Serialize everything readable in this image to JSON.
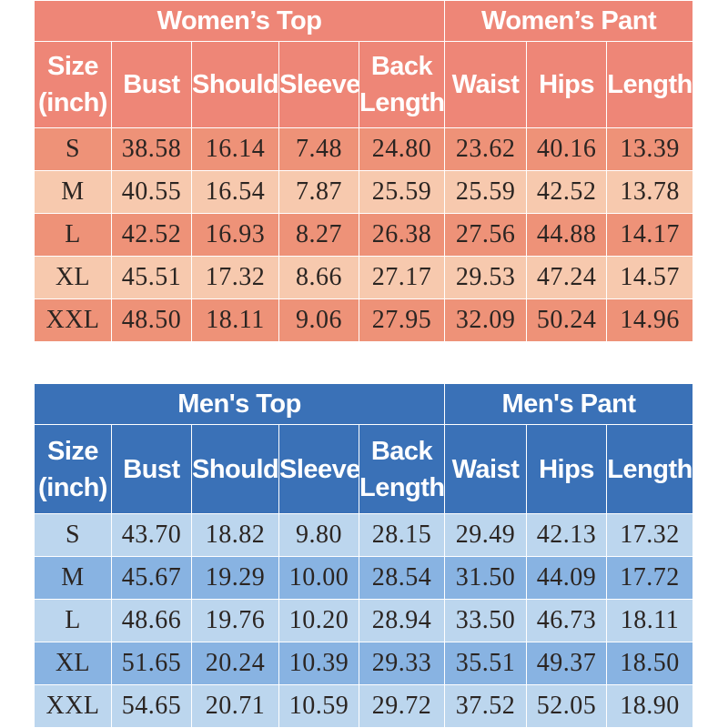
{
  "colors": {
    "women_header": "#ee8677",
    "women_row_dark": "#ee9278",
    "women_row_light": "#f7c9ae",
    "men_header": "#3a71b7",
    "men_row_light": "#bcd6ee",
    "men_row_dark": "#88b3e2",
    "cell_text": "#2b2522"
  },
  "women": {
    "top_title": "Women’s Top",
    "pant_title": "Women’s Pant",
    "headers": [
      "Size\n(inch)",
      "Bust",
      "Shoulder",
      "Sleeve",
      "Back\nLength",
      "Waist",
      "Hips",
      "Length"
    ],
    "rows": [
      [
        "S",
        "38.58",
        "16.14",
        "7.48",
        "24.80",
        "23.62",
        "40.16",
        "13.39"
      ],
      [
        "M",
        "40.55",
        "16.54",
        "7.87",
        "25.59",
        "25.59",
        "42.52",
        "13.78"
      ],
      [
        "L",
        "42.52",
        "16.93",
        "8.27",
        "26.38",
        "27.56",
        "44.88",
        "14.17"
      ],
      [
        "XL",
        "45.51",
        "17.32",
        "8.66",
        "27.17",
        "29.53",
        "47.24",
        "14.57"
      ],
      [
        "XXL",
        "48.50",
        "18.11",
        "9.06",
        "27.95",
        "32.09",
        "50.24",
        "14.96"
      ]
    ]
  },
  "men": {
    "top_title": "Men's Top",
    "pant_title": "Men's Pant",
    "headers": [
      "Size\n(inch)",
      "Bust",
      "Shoulder",
      "Sleeve",
      "Back\nLength",
      "Waist",
      "Hips",
      "Length"
    ],
    "rows": [
      [
        "S",
        "43.70",
        "18.82",
        "9.80",
        "28.15",
        "29.49",
        "42.13",
        "17.32"
      ],
      [
        "M",
        "45.67",
        "19.29",
        "10.00",
        "28.54",
        "31.50",
        "44.09",
        "17.72"
      ],
      [
        "L",
        "48.66",
        "19.76",
        "10.20",
        "28.94",
        "33.50",
        "46.73",
        "18.11"
      ],
      [
        "XL",
        "51.65",
        "20.24",
        "10.39",
        "29.33",
        "35.51",
        "49.37",
        "18.50"
      ],
      [
        "XXL",
        "54.65",
        "20.71",
        "10.59",
        "29.72",
        "37.52",
        "52.05",
        "18.90"
      ]
    ]
  }
}
